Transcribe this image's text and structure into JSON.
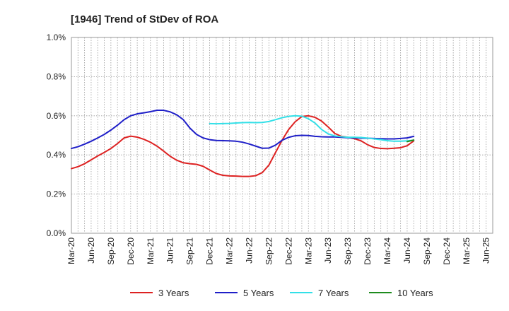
{
  "chart_data": {
    "type": "line",
    "title": "[1946]  Trend of StDev of ROA",
    "xlabel": "",
    "ylabel": "",
    "x_ticks": [
      "Mar-20",
      "Jun-20",
      "Sep-20",
      "Dec-20",
      "Mar-21",
      "Jun-21",
      "Sep-21",
      "Dec-21",
      "Mar-22",
      "Jun-22",
      "Sep-22",
      "Dec-22",
      "Mar-23",
      "Jun-23",
      "Sep-23",
      "Dec-23",
      "Mar-24",
      "Jun-24",
      "Sep-24",
      "Dec-24",
      "Mar-25",
      "Jun-25"
    ],
    "y_ticks": [
      "0.0%",
      "0.2%",
      "0.4%",
      "0.6%",
      "0.8%",
      "1.0%"
    ],
    "ylim": [
      0,
      1.0
    ],
    "y_unit": "%",
    "grid": true,
    "legend_position": "bottom",
    "series": [
      {
        "name": "3 Years",
        "color": "#dd2222",
        "start_index": 0,
        "values": [
          0.33,
          0.34,
          0.355,
          0.375,
          0.395,
          0.413,
          0.433,
          0.458,
          0.487,
          0.496,
          0.491,
          0.48,
          0.465,
          0.445,
          0.42,
          0.393,
          0.373,
          0.36,
          0.355,
          0.352,
          0.342,
          0.323,
          0.305,
          0.296,
          0.293,
          0.292,
          0.29,
          0.29,
          0.294,
          0.31,
          0.348,
          0.412,
          0.475,
          0.53,
          0.57,
          0.596,
          0.6,
          0.592,
          0.573,
          0.543,
          0.51,
          0.495,
          0.49,
          0.483,
          0.472,
          0.452,
          0.438,
          0.433,
          0.432,
          0.434,
          0.437,
          0.447,
          0.472
        ]
      },
      {
        "name": "5 Years",
        "color": "#1f1fc8",
        "start_index": 0,
        "values": [
          0.433,
          0.442,
          0.455,
          0.47,
          0.487,
          0.505,
          0.527,
          0.552,
          0.58,
          0.6,
          0.61,
          0.615,
          0.621,
          0.628,
          0.628,
          0.62,
          0.605,
          0.58,
          0.537,
          0.505,
          0.487,
          0.478,
          0.474,
          0.473,
          0.472,
          0.47,
          0.465,
          0.456,
          0.445,
          0.434,
          0.435,
          0.45,
          0.475,
          0.49,
          0.498,
          0.5,
          0.499,
          0.495,
          0.493,
          0.492,
          0.492,
          0.49,
          0.488,
          0.487,
          0.486,
          0.485,
          0.484,
          0.483,
          0.482,
          0.482,
          0.484,
          0.487,
          0.495
        ]
      },
      {
        "name": "7 Years",
        "color": "#33e0e8",
        "start_index": 21,
        "values": [
          0.56,
          0.559,
          0.56,
          0.561,
          0.563,
          0.565,
          0.566,
          0.565,
          0.566,
          0.571,
          0.58,
          0.59,
          0.597,
          0.6,
          0.598,
          0.585,
          0.563,
          0.53,
          0.508,
          0.497,
          0.493,
          0.49,
          0.49,
          0.489,
          0.486,
          0.482,
          0.478,
          0.473,
          0.47,
          0.47,
          0.472,
          0.475
        ]
      },
      {
        "name": "10 Years",
        "color": "#1e8c1e",
        "start_index": 51,
        "values": [
          0.468,
          0.476
        ]
      }
    ]
  }
}
